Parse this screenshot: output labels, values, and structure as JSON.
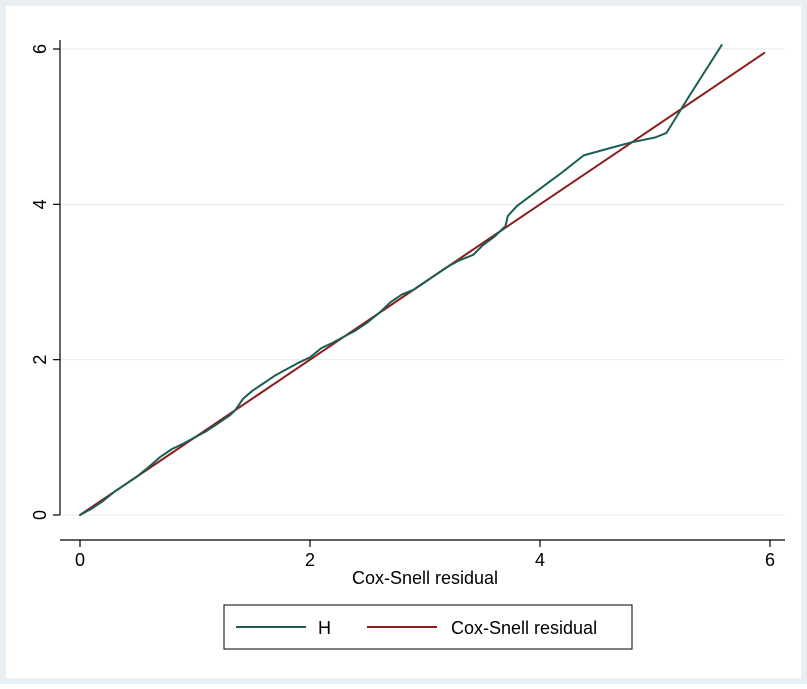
{
  "colors": {
    "outer_background": "#e8eef2",
    "plot_background": "#ffffff",
    "grid": "#e6ebee",
    "axis": "#000000",
    "series_h": "#1a5e55",
    "series_cs": "#8c1c1c"
  },
  "chart_data": {
    "type": "line",
    "title": "",
    "xlabel": "Cox-Snell residual",
    "ylabel": "",
    "xlim": [
      0,
      6
    ],
    "ylim": [
      0,
      6
    ],
    "x_ticks": [
      "0",
      "2",
      "4",
      "6"
    ],
    "y_ticks": [
      "0",
      "2",
      "4",
      "6"
    ],
    "grid": "horizontal",
    "legend_position": "bottom",
    "series": [
      {
        "name": "H",
        "color": "#1a5e55",
        "x": [
          0,
          0.1,
          0.2,
          0.3,
          0.4,
          0.5,
          0.6,
          0.7,
          0.8,
          0.9,
          1.0,
          1.1,
          1.2,
          1.3,
          1.35,
          1.42,
          1.5,
          1.6,
          1.7,
          1.8,
          1.9,
          2.0,
          2.1,
          2.2,
          2.3,
          2.4,
          2.5,
          2.6,
          2.7,
          2.8,
          2.9,
          3.0,
          3.1,
          3.2,
          3.3,
          3.42,
          3.5,
          3.6,
          3.7,
          3.72,
          3.8,
          4.0,
          4.2,
          4.38,
          4.6,
          4.8,
          5.0,
          5.1,
          5.3,
          5.58
        ],
        "y": [
          0,
          0.08,
          0.18,
          0.3,
          0.4,
          0.5,
          0.62,
          0.75,
          0.85,
          0.92,
          1.0,
          1.08,
          1.18,
          1.28,
          1.35,
          1.5,
          1.6,
          1.7,
          1.8,
          1.88,
          1.96,
          2.03,
          2.15,
          2.22,
          2.3,
          2.38,
          2.48,
          2.6,
          2.74,
          2.84,
          2.9,
          3.0,
          3.1,
          3.2,
          3.28,
          3.35,
          3.47,
          3.58,
          3.72,
          3.85,
          3.98,
          4.2,
          4.42,
          4.63,
          4.72,
          4.8,
          4.86,
          4.92,
          5.4,
          6.05
        ]
      },
      {
        "name": "Cox-Snell residual",
        "color": "#8c1c1c",
        "x": [
          0,
          5.95
        ],
        "y": [
          0,
          5.95
        ]
      }
    ]
  }
}
